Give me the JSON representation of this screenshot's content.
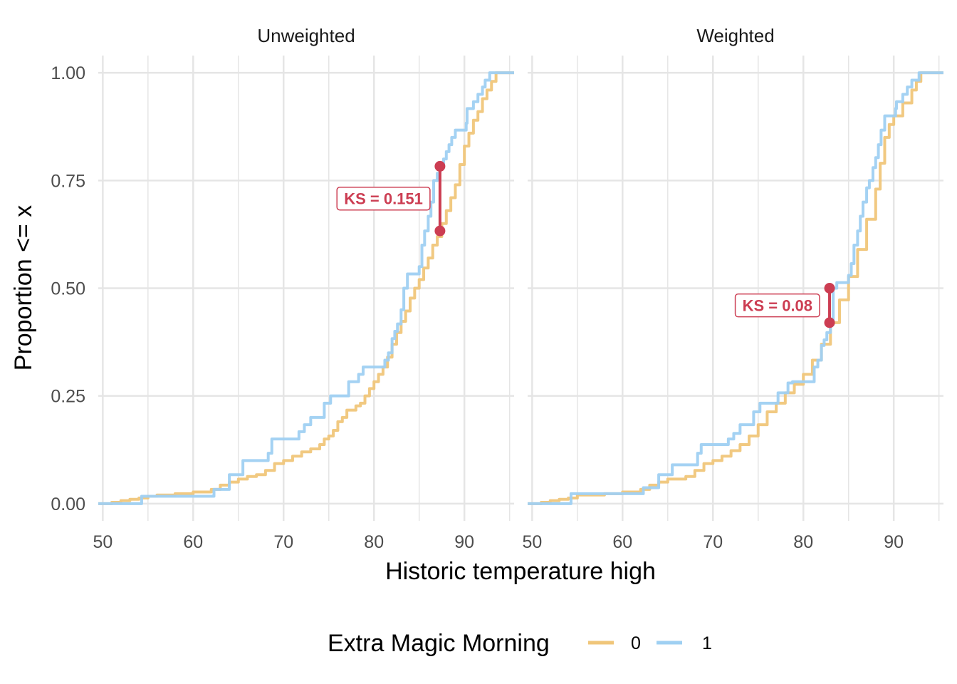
{
  "chart_data": {
    "type": "line",
    "subtype": "ecdf-step",
    "xlabel": "Historic temperature high",
    "ylabel": "Proportion <= x",
    "xlim": [
      49.5,
      95.5
    ],
    "ylim": [
      -0.04,
      1.04
    ],
    "x_ticks": [
      50,
      60,
      70,
      80,
      90
    ],
    "y_ticks": [
      0,
      0.25,
      0.5,
      0.75,
      1.0
    ],
    "y_tick_labels": [
      "0.00",
      "0.25",
      "0.50",
      "0.75",
      "1.00"
    ],
    "x_tick_labels": [
      "50",
      "60",
      "70",
      "80",
      "90"
    ],
    "legend": {
      "title": "Extra Magic Morning",
      "position": "bottom",
      "entries": [
        {
          "label": "0",
          "color": "#f0c67a"
        },
        {
          "label": "1",
          "color": "#9fd0f2"
        }
      ]
    },
    "annotation_color": "#cc3d52",
    "panels": [
      {
        "title": "Unweighted",
        "series": [
          {
            "name": "0",
            "color": "#f0c67a",
            "points": [
              [
                49.5,
                0
              ],
              [
                51,
                0.003
              ],
              [
                52,
                0.007
              ],
              [
                53,
                0.01
              ],
              [
                54,
                0.013
              ],
              [
                55,
                0.017
              ],
              [
                56,
                0.02
              ],
              [
                58,
                0.023
              ],
              [
                60,
                0.027
              ],
              [
                62,
                0.033
              ],
              [
                63,
                0.043
              ],
              [
                64,
                0.05
              ],
              [
                65,
                0.057
              ],
              [
                66,
                0.063
              ],
              [
                67,
                0.067
              ],
              [
                68,
                0.077
              ],
              [
                69,
                0.093
              ],
              [
                70,
                0.1
              ],
              [
                71,
                0.11
              ],
              [
                72,
                0.12
              ],
              [
                73,
                0.127
              ],
              [
                74,
                0.137
              ],
              [
                74.5,
                0.15
              ],
              [
                75,
                0.157
              ],
              [
                75.5,
                0.17
              ],
              [
                76,
                0.19
              ],
              [
                76.5,
                0.2
              ],
              [
                77,
                0.217
              ],
              [
                78,
                0.227
              ],
              [
                78.5,
                0.233
              ],
              [
                79,
                0.25
              ],
              [
                79.5,
                0.267
              ],
              [
                80,
                0.283
              ],
              [
                80.5,
                0.3
              ],
              [
                81,
                0.317
              ],
              [
                81.5,
                0.34
              ],
              [
                82,
                0.37
              ],
              [
                82.5,
                0.397
              ],
              [
                83,
                0.423
              ],
              [
                83.5,
                0.447
              ],
              [
                84,
                0.477
              ],
              [
                84.5,
                0.5
              ],
              [
                85,
                0.52
              ],
              [
                85.5,
                0.547
              ],
              [
                86,
                0.57
              ],
              [
                86.5,
                0.6
              ],
              [
                87,
                0.62
              ],
              [
                87.5,
                0.65
              ],
              [
                88,
                0.68
              ],
              [
                88.5,
                0.71
              ],
              [
                89,
                0.74
              ],
              [
                89.5,
                0.787
              ],
              [
                90,
                0.83
              ],
              [
                90.5,
                0.86
              ],
              [
                91,
                0.89
              ],
              [
                91.5,
                0.91
              ],
              [
                92,
                0.94
              ],
              [
                92.5,
                0.96
              ],
              [
                93,
                0.98
              ],
              [
                93.5,
                1.0
              ],
              [
                95.5,
                1.0
              ]
            ]
          },
          {
            "name": "1",
            "color": "#9fd0f2",
            "points": [
              [
                49.5,
                0
              ],
              [
                54.3,
                0.017
              ],
              [
                62.3,
                0.033
              ],
              [
                64,
                0.067
              ],
              [
                65.5,
                0.1
              ],
              [
                68.3,
                0.117
              ],
              [
                68.7,
                0.15
              ],
              [
                71.7,
                0.167
              ],
              [
                72.3,
                0.183
              ],
              [
                73,
                0.2
              ],
              [
                74.5,
                0.233
              ],
              [
                75.2,
                0.25
              ],
              [
                77.2,
                0.283
              ],
              [
                78.3,
                0.3
              ],
              [
                78.8,
                0.317
              ],
              [
                81.2,
                0.333
              ],
              [
                81.6,
                0.35
              ],
              [
                82,
                0.383
              ],
              [
                82.3,
                0.4
              ],
              [
                82.6,
                0.417
              ],
              [
                83,
                0.45
              ],
              [
                83.3,
                0.5
              ],
              [
                83.7,
                0.533
              ],
              [
                85,
                0.55
              ],
              [
                85.3,
                0.6
              ],
              [
                85.6,
                0.633
              ],
              [
                86,
                0.667
              ],
              [
                86.3,
                0.7
              ],
              [
                86.6,
                0.75
              ],
              [
                87,
                0.767
              ],
              [
                87.3,
                0.783
              ],
              [
                87.7,
                0.8
              ],
              [
                88,
                0.817
              ],
              [
                88.3,
                0.833
              ],
              [
                88.6,
                0.85
              ],
              [
                89,
                0.867
              ],
              [
                90.2,
                0.883
              ],
              [
                90.3,
                0.917
              ],
              [
                91,
                0.933
              ],
              [
                91.5,
                0.95
              ],
              [
                92,
                0.967
              ],
              [
                92.3,
                0.983
              ],
              [
                92.8,
                1.0
              ],
              [
                95.5,
                1.0
              ]
            ]
          }
        ],
        "ks": {
          "label": "KS = 0.151",
          "value": 0.151,
          "x": 87.3,
          "y_low": 0.633,
          "y_high": 0.783
        }
      },
      {
        "title": "Weighted",
        "series": [
          {
            "name": "0",
            "color": "#f0c67a",
            "points": [
              [
                49.5,
                0
              ],
              [
                51,
                0.003
              ],
              [
                52,
                0.007
              ],
              [
                53,
                0.01
              ],
              [
                54,
                0.013
              ],
              [
                55,
                0.02
              ],
              [
                58,
                0.023
              ],
              [
                60,
                0.027
              ],
              [
                62,
                0.033
              ],
              [
                63,
                0.043
              ],
              [
                64,
                0.05
              ],
              [
                65,
                0.057
              ],
              [
                67,
                0.063
              ],
              [
                68,
                0.077
              ],
              [
                69,
                0.093
              ],
              [
                70,
                0.1
              ],
              [
                71,
                0.11
              ],
              [
                72,
                0.123
              ],
              [
                73,
                0.137
              ],
              [
                74,
                0.157
              ],
              [
                75,
                0.183
              ],
              [
                76,
                0.213
              ],
              [
                77,
                0.233
              ],
              [
                78,
                0.257
              ],
              [
                79,
                0.277
              ],
              [
                80,
                0.3
              ],
              [
                81,
                0.333
              ],
              [
                82,
                0.37
              ],
              [
                83,
                0.42
              ],
              [
                84,
                0.473
              ],
              [
                85,
                0.527
              ],
              [
                86,
                0.59
              ],
              [
                87,
                0.66
              ],
              [
                88,
                0.73
              ],
              [
                88.5,
                0.79
              ],
              [
                89,
                0.85
              ],
              [
                89.5,
                0.88
              ],
              [
                90,
                0.9
              ],
              [
                91,
                0.93
              ],
              [
                92,
                0.96
              ],
              [
                92.5,
                0.98
              ],
              [
                93,
                1.0
              ],
              [
                95.5,
                1.0
              ]
            ]
          },
          {
            "name": "1",
            "color": "#9fd0f2",
            "points": [
              [
                49.5,
                0
              ],
              [
                54.3,
                0.023
              ],
              [
                62.3,
                0.037
              ],
              [
                64,
                0.067
              ],
              [
                65.5,
                0.09
              ],
              [
                68.3,
                0.117
              ],
              [
                68.7,
                0.137
              ],
              [
                71.7,
                0.15
              ],
              [
                72.3,
                0.163
              ],
              [
                73,
                0.183
              ],
              [
                74.5,
                0.213
              ],
              [
                75.2,
                0.233
              ],
              [
                77.2,
                0.257
              ],
              [
                78.3,
                0.28
              ],
              [
                78.8,
                0.283
              ],
              [
                81.2,
                0.317
              ],
              [
                81.6,
                0.333
              ],
              [
                82,
                0.367
              ],
              [
                82.3,
                0.38
              ],
              [
                82.6,
                0.397
              ],
              [
                83,
                0.42
              ],
              [
                83.3,
                0.5
              ],
              [
                83.7,
                0.513
              ],
              [
                85,
                0.53
              ],
              [
                85.3,
                0.557
              ],
              [
                85.6,
                0.6
              ],
              [
                86,
                0.633
              ],
              [
                86.3,
                0.667
              ],
              [
                86.6,
                0.7
              ],
              [
                87,
                0.733
              ],
              [
                87.3,
                0.75
              ],
              [
                87.7,
                0.78
              ],
              [
                88,
                0.803
              ],
              [
                88.3,
                0.833
              ],
              [
                88.6,
                0.867
              ],
              [
                89,
                0.9
              ],
              [
                90.2,
                0.917
              ],
              [
                90.3,
                0.933
              ],
              [
                91,
                0.95
              ],
              [
                91.5,
                0.967
              ],
              [
                92,
                0.983
              ],
              [
                92.8,
                1.0
              ],
              [
                95.5,
                1.0
              ]
            ]
          }
        ],
        "ks": {
          "label": "KS = 0.08",
          "value": 0.08,
          "x": 82.9,
          "y_low": 0.42,
          "y_high": 0.5
        }
      }
    ]
  }
}
